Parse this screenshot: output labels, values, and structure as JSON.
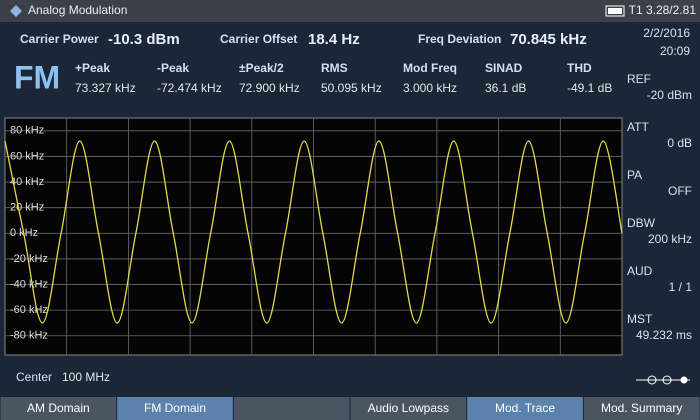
{
  "title_bar": {
    "app": "Analog Modulation",
    "status": "T1 3.28/2.81"
  },
  "header": {
    "carrier_power": {
      "label": "Carrier Power",
      "value": "-10.3 dBm"
    },
    "carrier_offset": {
      "label": "Carrier Offset",
      "value": "18.4 Hz"
    },
    "freq_deviation": {
      "label": "Freq Deviation",
      "value": "70.845 kHz"
    },
    "mode": "FM",
    "measurements": [
      {
        "label": "+Peak",
        "value": "73.327 kHz"
      },
      {
        "label": "-Peak",
        "value": "-72.474 kHz"
      },
      {
        "label": "±Peak/2",
        "value": "72.900 kHz"
      },
      {
        "label": "RMS",
        "value": "50.095 kHz"
      },
      {
        "label": "Mod Freq",
        "value": "3.000 kHz"
      },
      {
        "label": "SINAD",
        "value": "36.1 dB"
      },
      {
        "label": "THD",
        "value": "-49.1 dB"
      }
    ]
  },
  "side_panel": {
    "date": "2/2/2016",
    "time": "20:09",
    "items": [
      {
        "label": "REF",
        "value": "-20 dBm"
      },
      {
        "label": "ATT",
        "value": "0 dB"
      },
      {
        "label": "PA",
        "value": "OFF"
      },
      {
        "label": "DBW",
        "value": "200 kHz"
      },
      {
        "label": "AUD",
        "value": "1 / 1"
      },
      {
        "label": "MST",
        "value": "49.232 ms"
      }
    ]
  },
  "footer": {
    "label": "Center",
    "value": "100 MHz"
  },
  "softkeys": [
    "AM Domain",
    "FM Domain",
    "Audio Lowpass",
    "Mod. Trace",
    "Mod. Summary"
  ],
  "chart_data": {
    "type": "line",
    "color": "#e6d84a",
    "values": [
      72,
      0,
      -70,
      0,
      72,
      0,
      -70,
      0,
      72,
      0,
      -70,
      0,
      72,
      0,
      -70,
      0,
      72,
      0,
      -70,
      0,
      72,
      0,
      -70,
      0,
      72,
      0,
      -70,
      0,
      72,
      0,
      -70,
      0,
      72,
      0
    ],
    "ylim": [
      -95,
      90
    ],
    "yticks": [
      {
        "value": 80,
        "label": "80 kHz"
      },
      {
        "value": 60,
        "label": "60 kHz"
      },
      {
        "value": 40,
        "label": "40 kHz"
      },
      {
        "value": 20,
        "label": "20 kHz"
      },
      {
        "value": 0,
        "label": "0 kHz"
      },
      {
        "value": -20,
        "label": "-20 kHz"
      },
      {
        "value": -40,
        "label": "-40 kHz"
      },
      {
        "value": -60,
        "label": "-60 kHz"
      },
      {
        "value": -80,
        "label": "-80 kHz"
      }
    ],
    "grid": true
  }
}
